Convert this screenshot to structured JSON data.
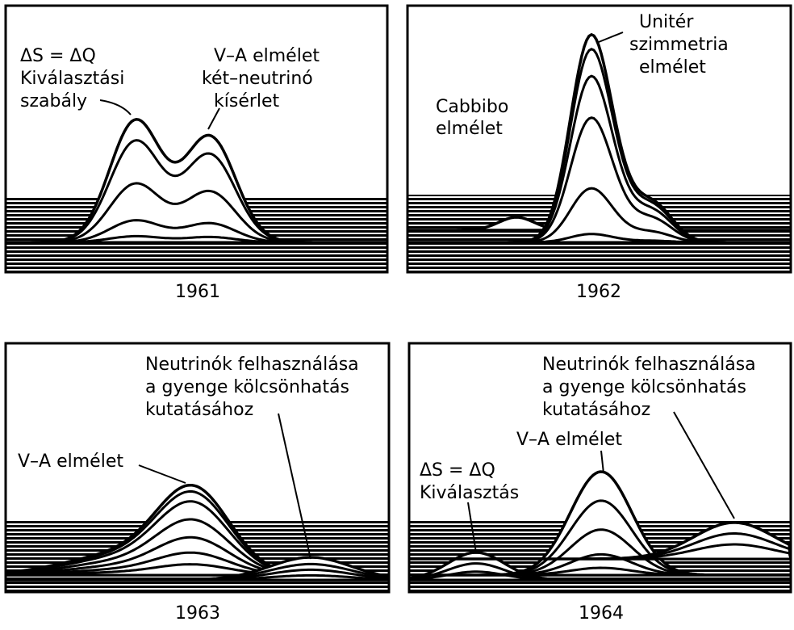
{
  "panels": [
    {
      "year": "1961",
      "labels": [
        [
          "ΔS = ΔQ",
          "Kiválasztási",
          "szabály"
        ],
        [
          "V–A elmélet",
          "két–neutrinó",
          "kísérlet"
        ]
      ]
    },
    {
      "year": "1962",
      "labels": [
        [
          "Cabbibo",
          "elmélet"
        ],
        [
          "Unitér",
          "szimmetria",
          "elmélet"
        ]
      ]
    },
    {
      "year": "1963",
      "labels": [
        [
          "V–A elmélet"
        ],
        [
          "Neutrinók felhasználása",
          "a gyenge kölcsönhatás",
          "kutatásához"
        ]
      ]
    },
    {
      "year": "1964",
      "labels": [
        [
          "ΔS = ΔQ",
          "Kiválasztás"
        ],
        [
          "V–A elmélet"
        ],
        [
          "Neutrinók felhasználása",
          "a gyenge kölcsönhatás",
          "kutatásához"
        ]
      ]
    }
  ]
}
